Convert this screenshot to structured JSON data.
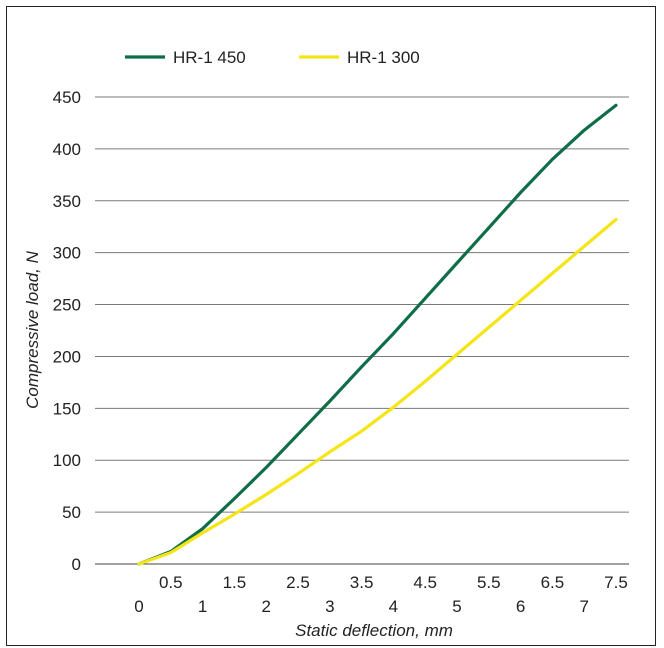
{
  "chart_data": {
    "type": "line",
    "xlabel": "Static deflection, mm",
    "ylabel": "Compressive load, N",
    "xlim": [
      0,
      7.5
    ],
    "ylim": [
      0,
      450
    ],
    "x_ticks": [
      "0",
      "0.5",
      "1",
      "1.5",
      "2",
      "2.5",
      "3",
      "3.5",
      "4",
      "4.5",
      "5",
      "5.5",
      "6",
      "6.5",
      "7",
      "7.5"
    ],
    "y_ticks": [
      0,
      50,
      100,
      150,
      200,
      250,
      300,
      350,
      400,
      450
    ],
    "grid": "horizontal",
    "legend_position": "top-left",
    "series": [
      {
        "name": "HR-1 450",
        "color": "#0f6e48",
        "x": [
          0,
          0.5,
          1,
          1.5,
          2,
          2.5,
          3,
          3.5,
          4,
          4.5,
          5,
          5.5,
          6,
          6.5,
          7,
          7.5
        ],
        "y": [
          0,
          12,
          34,
          63,
          93,
          125,
          157,
          190,
          222,
          256,
          290,
          324,
          358,
          390,
          418,
          442
        ]
      },
      {
        "name": "HR-1 300",
        "color": "#f5e518",
        "x": [
          0,
          0.5,
          1,
          1.5,
          2,
          2.5,
          3,
          3.5,
          4,
          4.5,
          5,
          5.5,
          6,
          6.5,
          7,
          7.5
        ],
        "y": [
          0,
          11,
          30,
          48,
          67,
          87,
          108,
          128,
          151,
          176,
          202,
          228,
          254,
          280,
          306,
          332
        ]
      }
    ]
  }
}
